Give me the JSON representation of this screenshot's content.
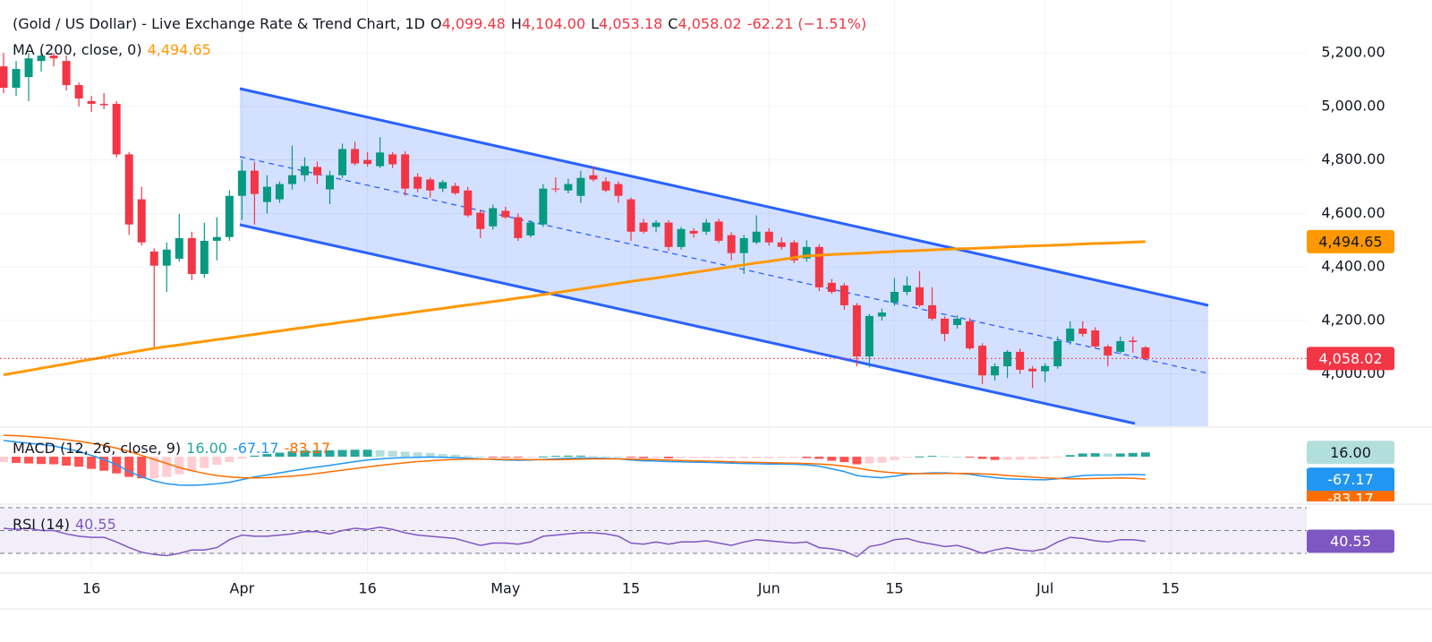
{
  "chart_data": {
    "type": "candlestick",
    "title": "(Gold / US Dollar) - Live Exchange Rate & Trend Chart, 1D",
    "ohlc_legend": [
      {
        "key": "O",
        "label": "4,099.48"
      },
      {
        "key": "H",
        "label": "4,104.00"
      },
      {
        "key": "L",
        "label": "4,053.18"
      },
      {
        "key": "C",
        "label": "4,058.02"
      }
    ],
    "change_label": "-62.21 (−1.51%)",
    "categories": [
      null,
      null,
      null,
      null,
      null,
      null,
      null,
      "16",
      null,
      null,
      null,
      null,
      null,
      null,
      null,
      null,
      null,
      null,
      null,
      "Apr",
      null,
      null,
      null,
      null,
      null,
      null,
      null,
      null,
      null,
      "16",
      null,
      null,
      null,
      null,
      null,
      null,
      null,
      null,
      null,
      null,
      "May",
      null,
      null,
      null,
      null,
      null,
      null,
      null,
      null,
      null,
      "15",
      null,
      null,
      null,
      null,
      null,
      null,
      null,
      null,
      null,
      null,
      "Jun",
      null,
      null,
      null,
      null,
      null,
      null,
      null,
      null,
      null,
      "15",
      null,
      null,
      null,
      null,
      null,
      null,
      null,
      null,
      null,
      null,
      null,
      "Jul",
      null,
      null,
      null,
      null,
      null,
      null,
      null,
      null,
      null,
      "15"
    ],
    "open": [
      5150,
      5070,
      5110,
      5170,
      5190,
      5170,
      5080,
      5020,
      5010,
      5010,
      4821,
      4653,
      4458,
      4405,
      4431,
      4508,
      4374,
      4498,
      4512,
      4666,
      4760,
      4643,
      4653,
      4710,
      4743,
      4774,
      4690,
      4743,
      4841,
      4800,
      4777,
      4821,
      4821,
      4737,
      4727,
      4693,
      4703,
      4686,
      4603,
      4552,
      4610,
      4586,
      4518,
      4559,
      4693,
      4686,
      4666,
      4743,
      4720,
      4710,
      4653,
      4566,
      4550,
      4566,
      4475,
      4535,
      4532,
      4570,
      4519,
      4452,
      4492,
      4532,
      4492,
      4492,
      4432,
      4475,
      4341,
      4331,
      4257,
      4066,
      4215,
      4267,
      4307,
      4324,
      4257,
      4207,
      4183,
      4197,
      4106,
      3995,
      4029,
      4083,
      4020,
      4010,
      4029,
      4123,
      4170,
      4163,
      4103,
      4083,
      4125,
      4099.48,
      null,
      null
    ],
    "high": [
      5200,
      5170,
      5200,
      5200,
      5200,
      5190,
      5090,
      5040,
      5050,
      5020,
      4830,
      4700,
      4470,
      4492,
      4599,
      4532,
      4566,
      4586,
      4687,
      4801,
      4794,
      4743,
      4720,
      4854,
      4810,
      4794,
      4760,
      4861,
      4868,
      4830,
      4885,
      4830,
      4833,
      4750,
      4735,
      4725,
      4715,
      4700,
      4615,
      4633,
      4625,
      4600,
      4575,
      4710,
      4735,
      4730,
      4760,
      4777,
      4735,
      4720,
      4660,
      4580,
      4575,
      4575,
      4550,
      4545,
      4580,
      4580,
      4530,
      4520,
      4593,
      4545,
      4510,
      4500,
      4500,
      4485,
      4355,
      4340,
      4265,
      4225,
      4245,
      4358,
      4365,
      4385,
      4324,
      4215,
      4220,
      4210,
      4115,
      4040,
      4090,
      4095,
      4030,
      4040,
      4140,
      4197,
      4197,
      4175,
      4110,
      4140,
      4140,
      4104,
      null,
      null
    ],
    "low": [
      5050,
      5040,
      5020,
      5130,
      5150,
      5060,
      5000,
      4980,
      4990,
      4810,
      4520,
      4480,
      4096,
      4307,
      4420,
      4351,
      4360,
      4425,
      4498,
      4576,
      4559,
      4600,
      4640,
      4690,
      4720,
      4710,
      4635,
      4733,
      4780,
      4775,
      4770,
      4770,
      4666,
      4680,
      4660,
      4680,
      4670,
      4586,
      4508,
      4540,
      4580,
      4498,
      4510,
      4550,
      4680,
      4675,
      4640,
      4720,
      4680,
      4640,
      4498,
      4525,
      4530,
      4460,
      4465,
      4510,
      4520,
      4490,
      4425,
      4374,
      4485,
      4480,
      4465,
      4415,
      4420,
      4310,
      4300,
      4240,
      4029,
      4025,
      4200,
      4255,
      4295,
      4250,
      4200,
      4123,
      4170,
      4090,
      3962,
      3975,
      3985,
      4000,
      3948,
      3970,
      4020,
      4110,
      4140,
      4095,
      4029,
      4075,
      4080,
      4053.18,
      null,
      null
    ],
    "close": [
      5070,
      5140,
      5180,
      5190,
      5180,
      5080,
      5030,
      5010,
      5005,
      4821,
      4559,
      4492,
      4405,
      4465,
      4508,
      4374,
      4498,
      4512,
      4666,
      4760,
      4673,
      4700,
      4710,
      4743,
      4777,
      4743,
      4743,
      4841,
      4787,
      4785,
      4828,
      4784,
      4693,
      4693,
      4686,
      4717,
      4676,
      4593,
      4542,
      4620,
      4586,
      4508,
      4566,
      4693,
      4690,
      4710,
      4733,
      4727,
      4686,
      4666,
      4532,
      4532,
      4566,
      4475,
      4542,
      4525,
      4566,
      4498,
      4452,
      4508,
      4532,
      4492,
      4475,
      4425,
      4475,
      4324,
      4307,
      4257,
      4066,
      4217,
      4230,
      4307,
      4331,
      4257,
      4207,
      4150,
      4207,
      4096,
      3995,
      4029,
      4083,
      4016,
      4010,
      4030,
      4123,
      4170,
      4150,
      4103,
      4069,
      4123,
      4120,
      4058.02,
      null,
      null
    ],
    "up_color": "#089981",
    "down_color": "#f23645",
    "last_price_color": "#f23645",
    "ylim": [
      3805,
      5398
    ],
    "yticks": [
      {
        "value": 4000,
        "label": "4,000.00"
      },
      {
        "value": 4200,
        "label": "4,200.00"
      },
      {
        "value": 4400,
        "label": "4,400.00"
      },
      {
        "value": 4600,
        "label": "4,600.00"
      },
      {
        "value": 4800,
        "label": "4,800.00"
      },
      {
        "value": 5000,
        "label": "5,000.00"
      },
      {
        "value": 5200,
        "label": "5,200.00"
      }
    ],
    "grid": true,
    "ma": {
      "name": "MA",
      "params": "(200, close, 0)",
      "color": "#ff9800",
      "value_label": "4,494.65",
      "values": [
        3997,
        4005,
        4013,
        4022,
        4030,
        4038,
        4047,
        4055,
        4063,
        4072,
        4080,
        4088,
        4096,
        4103,
        4109,
        4116,
        4122,
        4129,
        4135,
        4142,
        4148,
        4155,
        4161,
        4168,
        4174,
        4181,
        4187,
        4194,
        4200,
        4207,
        4213,
        4220,
        4226,
        4233,
        4239,
        4245,
        4252,
        4258,
        4264,
        4271,
        4277,
        4284,
        4290,
        4297,
        4304,
        4311,
        4318,
        4325,
        4332,
        4339,
        4346,
        4353,
        4359,
        4366,
        4373,
        4380,
        4387,
        4394,
        4401,
        4408,
        4415,
        4421,
        4428,
        4435,
        4442,
        4444,
        4447,
        4449,
        4451,
        4453,
        4456,
        4458,
        4460,
        4462,
        4464,
        4466,
        4468,
        4469,
        4471,
        4473,
        4475,
        4477,
        4479,
        4480,
        4482,
        4484,
        4486,
        4488,
        4489,
        4491,
        4493,
        4494.65,
        null,
        null
      ]
    },
    "macd": {
      "name": "MACD",
      "params": "(12, 26, close, 9)",
      "ylim": [
        -166,
        100
      ],
      "histogram": {
        "value_label": "16.00",
        "colors": [
          "#26a69a",
          "#b2dfdb",
          "#ff5252",
          "#ffcdd2"
        ],
        "values": [
          -20,
          -23,
          -25,
          -27,
          -28,
          -33,
          -37,
          -45,
          -52,
          -62,
          -75,
          -80,
          -80,
          -75,
          -65,
          -54,
          -42,
          -30,
          -20,
          -7,
          4,
          10,
          15,
          20,
          23,
          24,
          24,
          25,
          26,
          26,
          24,
          22,
          19,
          16,
          14,
          10,
          7,
          4,
          1,
          -1,
          -2,
          -3,
          -1,
          1,
          3,
          4,
          4,
          3,
          2,
          0,
          -3,
          -5,
          -5,
          -6,
          -5,
          -5,
          -5,
          -5,
          -5,
          -5,
          -5,
          -5,
          -4,
          -4,
          -5,
          -8,
          -15,
          -20,
          -28,
          -25,
          -22,
          -12,
          -3,
          1,
          3,
          2,
          0,
          -3,
          -8,
          -12,
          -12,
          -11,
          -9,
          -7,
          -1,
          6,
          12,
          13,
          12,
          12,
          14,
          16,
          null,
          null
        ]
      },
      "macd": {
        "color": "#2196f3",
        "value_label": "-67.17",
        "values": [
          60,
          55,
          50,
          45,
          40,
          30,
          20,
          5,
          -10,
          -30,
          -55,
          -75,
          -90,
          -100,
          -105,
          -106,
          -104,
          -100,
          -95,
          -85,
          -75,
          -68,
          -60,
          -52,
          -45,
          -38,
          -32,
          -25,
          -18,
          -12,
          -8,
          -5,
          -3,
          -2,
          -1,
          -2,
          -3,
          -5,
          -8,
          -10,
          -12,
          -13,
          -12,
          -10,
          -8,
          -6,
          -5,
          -5,
          -6,
          -8,
          -12,
          -15,
          -16,
          -18,
          -19,
          -20,
          -21,
          -22,
          -24,
          -25,
          -26,
          -27,
          -27,
          -28,
          -30,
          -35,
          -45,
          -55,
          -70,
          -75,
          -78,
          -72,
          -65,
          -62,
          -60,
          -60,
          -62,
          -65,
          -72,
          -78,
          -82,
          -84,
          -85,
          -86,
          -82,
          -76,
          -70,
          -68,
          -68,
          -67,
          -66,
          -67.17,
          null,
          null
        ]
      },
      "signal": {
        "color": "#ff6d00",
        "value_label": "-83.17",
        "values": [
          80,
          78,
          75,
          72,
          68,
          63,
          57,
          50,
          42,
          32,
          20,
          5,
          -10,
          -25,
          -40,
          -52,
          -62,
          -70,
          -75,
          -78,
          -79,
          -78,
          -75,
          -72,
          -68,
          -62,
          -56,
          -50,
          -44,
          -38,
          -32,
          -27,
          -22,
          -18,
          -15,
          -12,
          -10,
          -9,
          -9,
          -9,
          -10,
          -10,
          -11,
          -11,
          -11,
          -10,
          -9,
          -8,
          -8,
          -8,
          -9,
          -10,
          -11,
          -12,
          -14,
          -15,
          -16,
          -17,
          -19,
          -20,
          -21,
          -22,
          -23,
          -24,
          -25,
          -27,
          -30,
          -35,
          -42,
          -50,
          -56,
          -60,
          -62,
          -63,
          -63,
          -62,
          -62,
          -62,
          -64,
          -66,
          -70,
          -73,
          -76,
          -79,
          -81,
          -82,
          -82,
          -81,
          -80,
          -79,
          -80,
          -83.17,
          null,
          null
        ]
      }
    },
    "rsi": {
      "name": "RSI",
      "params": "(14)",
      "color": "#7e57c2",
      "value_label": "40.55",
      "ylim": [
        30,
        70
      ],
      "levels": [
        70,
        50,
        30
      ],
      "values": [
        52,
        51,
        52,
        50,
        50,
        47,
        45,
        44,
        44,
        40,
        35,
        31,
        29,
        28,
        30,
        33,
        33,
        35,
        42,
        46,
        45,
        45,
        46,
        47,
        49,
        49,
        47,
        50,
        52,
        51,
        53,
        51,
        48,
        46,
        45,
        44,
        43,
        40,
        37,
        39,
        39,
        38,
        40,
        45,
        46,
        47,
        48,
        48,
        47,
        45,
        39,
        38,
        40,
        38,
        40,
        40,
        41,
        39,
        37,
        40,
        42,
        41,
        40,
        39,
        40,
        35,
        34,
        32,
        27,
        36,
        38,
        42,
        43,
        40,
        38,
        36,
        37,
        34,
        30,
        33,
        35,
        33,
        32,
        34,
        40,
        44,
        43,
        41,
        40,
        42,
        42,
        40.55,
        null,
        null
      ]
    }
  }
}
